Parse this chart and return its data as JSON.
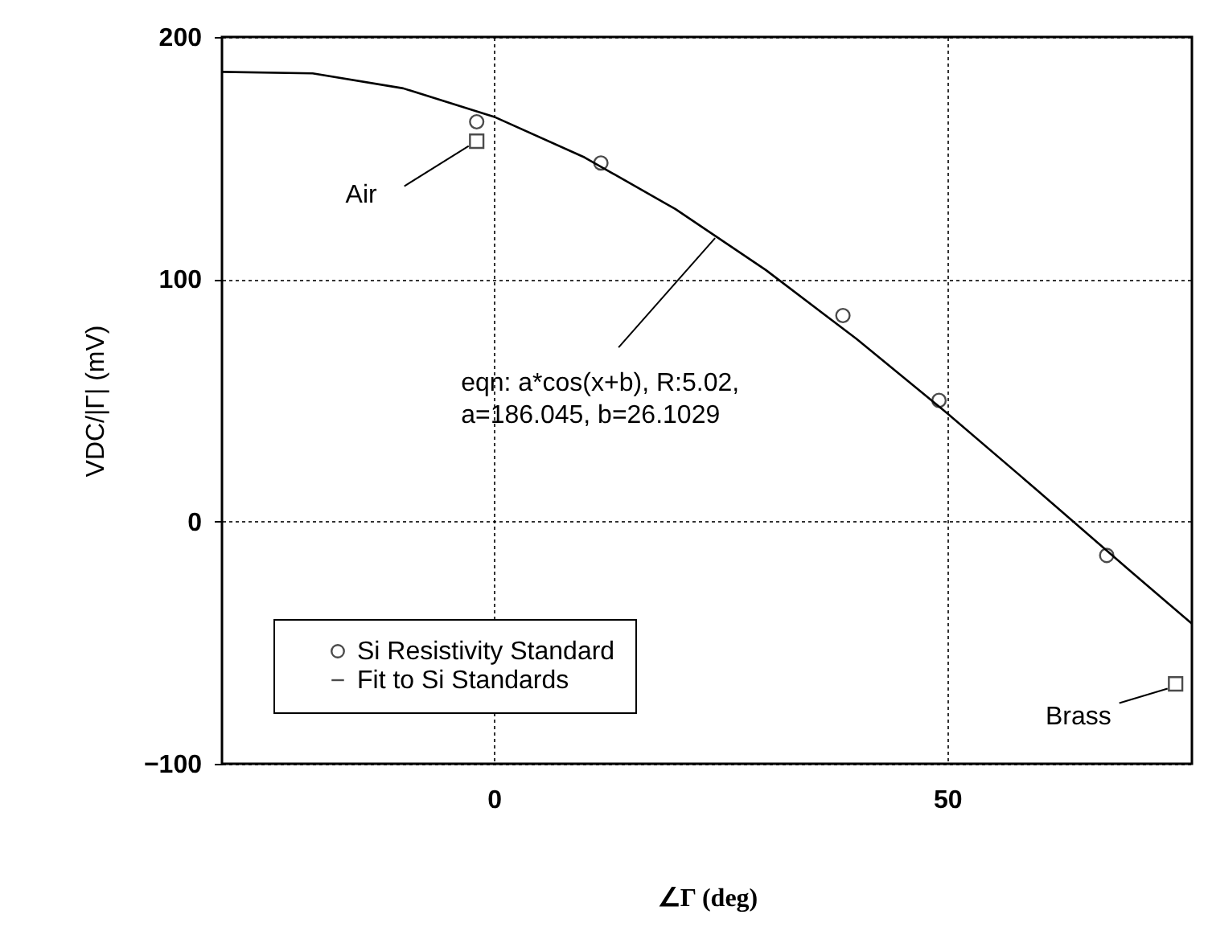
{
  "chart_data": {
    "type": "scatter",
    "xlabel": "∠Γ (deg)",
    "ylabel": "VDC/|Γ| (mV)",
    "xlim": [
      -30,
      77
    ],
    "ylim": [
      -100,
      200
    ],
    "xticks": [
      0,
      50
    ],
    "yticks": [
      -100,
      0,
      100,
      200
    ],
    "grid": true,
    "legend": "bottom left",
    "series": [
      {
        "name": "Si Resistivity Standard",
        "marker": "circle",
        "color": "#000000",
        "x": [
          -1.9,
          11.8,
          38.5,
          49.1,
          67.6
        ],
        "values": [
          165,
          148,
          85,
          50,
          -14
        ]
      },
      {
        "name": "Fit to Si Standards",
        "type": "line",
        "marker": "none",
        "line_style": "solid",
        "color": "#000000",
        "x": [
          -30,
          -20,
          -10,
          0,
          10,
          20,
          30,
          40,
          50,
          60,
          70,
          77
        ],
        "values": [
          185.6,
          185.0,
          178.8,
          167.1,
          150.3,
          129.0,
          103.8,
          75.4,
          44.7,
          12.7,
          -19.8,
          -42.2
        ]
      },
      {
        "marker": "square",
        "color": "#000000",
        "x": [
          -1.9,
          75.2
        ],
        "values": [
          157,
          -67
        ]
      }
    ],
    "annotations": [
      {
        "text": "Air",
        "x": -1.9,
        "y": 157
      },
      {
        "text": "eqn: a*cos(x+b), R:5.02,\na=186.045, b=26.1029",
        "x": 24.4,
        "y": 117
      },
      {
        "text": "Brass",
        "x": 75.2,
        "y": -67
      }
    ]
  }
}
